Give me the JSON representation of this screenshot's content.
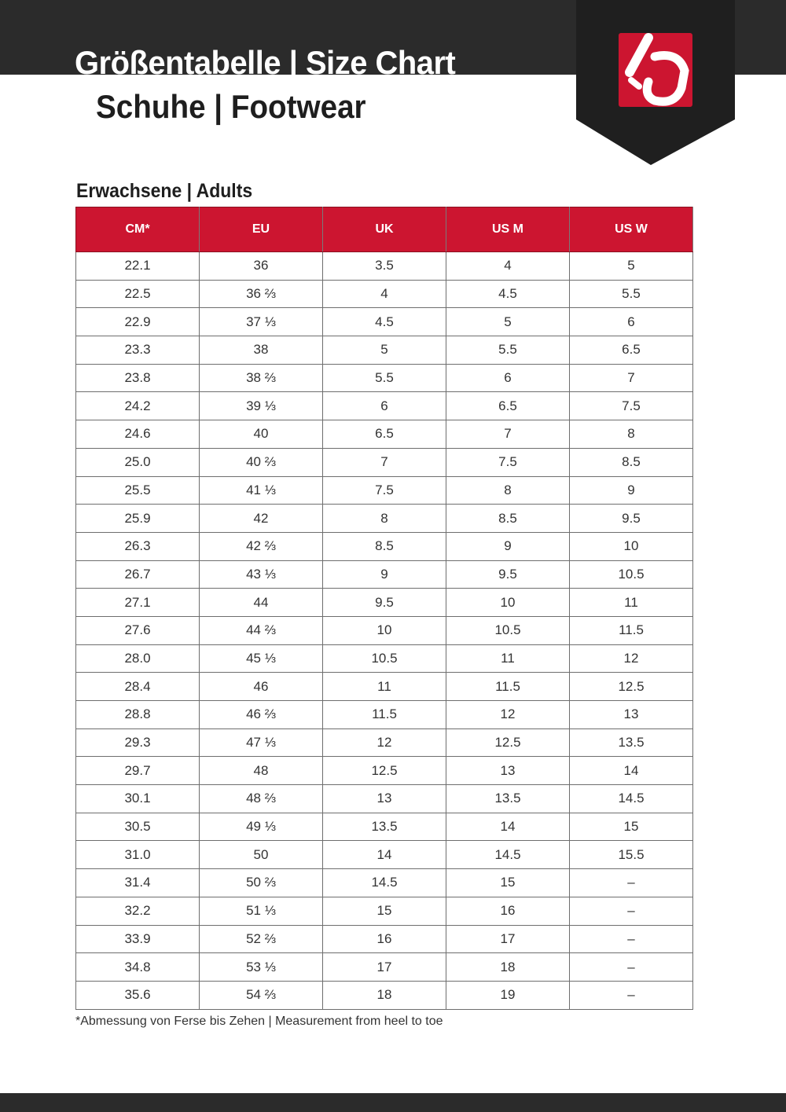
{
  "header": {
    "title": "Größentabelle | Size Chart",
    "subtitle": "Schuhe | Footwear",
    "brand_color": "#cc1530",
    "band_color": "#2b2b2b",
    "logo": "five-ten-logo"
  },
  "section_title": "Erwachsene | Adults",
  "table": {
    "columns": [
      "CM*",
      "EU",
      "UK",
      "US M",
      "US W"
    ],
    "rows": [
      [
        "22.1",
        "36",
        "3.5",
        "4",
        "5"
      ],
      [
        "22.5",
        "36 ⅔",
        "4",
        "4.5",
        "5.5"
      ],
      [
        "22.9",
        "37 ⅓",
        "4.5",
        "5",
        "6"
      ],
      [
        "23.3",
        "38",
        "5",
        "5.5",
        "6.5"
      ],
      [
        "23.8",
        "38 ⅔",
        "5.5",
        "6",
        "7"
      ],
      [
        "24.2",
        "39 ⅓",
        "6",
        "6.5",
        "7.5"
      ],
      [
        "24.6",
        "40",
        "6.5",
        "7",
        "8"
      ],
      [
        "25.0",
        "40 ⅔",
        "7",
        "7.5",
        "8.5"
      ],
      [
        "25.5",
        "41 ⅓",
        "7.5",
        "8",
        "9"
      ],
      [
        "25.9",
        "42",
        "8",
        "8.5",
        "9.5"
      ],
      [
        "26.3",
        "42 ⅔",
        "8.5",
        "9",
        "10"
      ],
      [
        "26.7",
        "43 ⅓",
        "9",
        "9.5",
        "10.5"
      ],
      [
        "27.1",
        "44",
        "9.5",
        "10",
        "11"
      ],
      [
        "27.6",
        "44 ⅔",
        "10",
        "10.5",
        "11.5"
      ],
      [
        "28.0",
        "45 ⅓",
        "10.5",
        "11",
        "12"
      ],
      [
        "28.4",
        "46",
        "11",
        "11.5",
        "12.5"
      ],
      [
        "28.8",
        "46 ⅔",
        "11.5",
        "12",
        "13"
      ],
      [
        "29.3",
        "47 ⅓",
        "12",
        "12.5",
        "13.5"
      ],
      [
        "29.7",
        "48",
        "12.5",
        "13",
        "14"
      ],
      [
        "30.1",
        "48 ⅔",
        "13",
        "13.5",
        "14.5"
      ],
      [
        "30.5",
        "49 ⅓",
        "13.5",
        "14",
        "15"
      ],
      [
        "31.0",
        "50",
        "14",
        "14.5",
        "15.5"
      ],
      [
        "31.4",
        "50 ⅔",
        "14.5",
        "15",
        "–"
      ],
      [
        "32.2",
        "51 ⅓",
        "15",
        "16",
        "–"
      ],
      [
        "33.9",
        "52 ⅔",
        "16",
        "17",
        "–"
      ],
      [
        "34.8",
        "53 ⅓",
        "17",
        "18",
        "–"
      ],
      [
        "35.6",
        "54 ⅔",
        "18",
        "19",
        "–"
      ]
    ]
  },
  "footnote": "*Abmessung von Ferse bis Zehen | Measurement from heel to toe"
}
